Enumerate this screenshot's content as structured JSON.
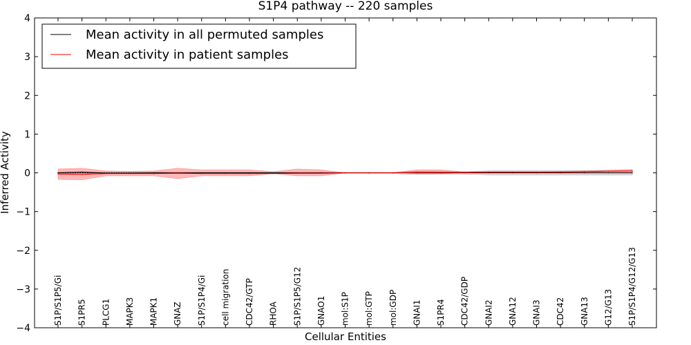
{
  "chart_data": {
    "type": "line",
    "title": "S1P4 pathway -- 220 samples",
    "xlabel": "Cellular Entities",
    "ylabel": "Inferred Activity",
    "ylim": [
      -4,
      4
    ],
    "yticks": [
      4,
      3,
      2,
      1,
      0,
      -1,
      -2,
      -3,
      -4
    ],
    "ytick_labels": [
      "4",
      "3",
      "2",
      "1",
      "0",
      "−1",
      "−2",
      "−3",
      "−4"
    ],
    "categories": [
      "S1P/S1P5/Gi",
      "S1PR5",
      "PLCG1",
      "MAPK3",
      "MAPK1",
      "GNAZ",
      "S1P/S1P4/Gi",
      "cell migration",
      "CDC42/GTP",
      "RHOA",
      "S1P/S1P5/G12",
      "GNAO1",
      "mol:S1P",
      "mol:GTP",
      "mol:GDP",
      "GNAI1",
      "S1PR4",
      "CDC42/GDP",
      "GNAI2",
      "GNA12",
      "GNAI3",
      "CDC42",
      "GNA13",
      "G12/G13",
      "S1P/S1P4/G12/G13"
    ],
    "legend": {
      "position": "top-left",
      "entries": [
        "Mean activity in all permuted samples",
        "Mean activity in patient samples"
      ]
    },
    "series": [
      {
        "name": "Mean activity in all permuted samples",
        "color": "#000000",
        "values": [
          0.0,
          0.02,
          -0.01,
          -0.01,
          0.0,
          0.0,
          0.0,
          0.0,
          0.0,
          0.0,
          0.0,
          0.0,
          0.0,
          0.0,
          0.0,
          0.0,
          0.0,
          0.0,
          0.0,
          0.0,
          0.0,
          0.0,
          0.0,
          0.0,
          0.0
        ],
        "lower": [
          -0.02,
          -0.02,
          -0.02,
          -0.02,
          -0.02,
          -0.02,
          -0.02,
          -0.02,
          -0.02,
          -0.02,
          -0.02,
          -0.02,
          -0.02,
          -0.02,
          -0.02,
          -0.04,
          -0.03,
          -0.03,
          -0.05,
          -0.05,
          -0.05,
          -0.05,
          -0.05,
          -0.05,
          -0.05
        ],
        "upper": [
          0.02,
          0.02,
          0.02,
          0.02,
          0.02,
          0.02,
          0.02,
          0.02,
          0.02,
          0.02,
          0.02,
          0.02,
          0.02,
          0.02,
          0.02,
          0.04,
          0.03,
          0.03,
          0.05,
          0.05,
          0.05,
          0.05,
          0.05,
          0.05,
          0.05
        ]
      },
      {
        "name": "Mean activity in patient samples",
        "color": "#ff0000",
        "values": [
          -0.03,
          -0.04,
          -0.02,
          -0.02,
          -0.02,
          -0.01,
          -0.02,
          -0.02,
          -0.02,
          -0.02,
          -0.01,
          -0.01,
          0.0,
          0.0,
          0.0,
          0.01,
          0.01,
          0.01,
          0.02,
          0.02,
          0.02,
          0.02,
          0.03,
          0.04,
          0.05
        ],
        "lower": [
          -0.17,
          -0.18,
          -0.08,
          -0.08,
          -0.08,
          -0.15,
          -0.08,
          -0.08,
          -0.08,
          -0.02,
          -0.08,
          -0.08,
          0.0,
          0.0,
          0.0,
          -0.02,
          -0.02,
          0.0,
          0.0,
          0.0,
          0.0,
          0.0,
          0.0,
          0.02,
          0.02
        ],
        "upper": [
          0.1,
          0.12,
          0.05,
          0.04,
          0.05,
          0.12,
          0.08,
          0.08,
          0.08,
          0.03,
          0.1,
          0.08,
          0.0,
          0.0,
          0.0,
          0.08,
          0.08,
          0.02,
          0.03,
          0.03,
          0.03,
          0.04,
          0.05,
          0.07,
          0.09
        ]
      }
    ]
  }
}
